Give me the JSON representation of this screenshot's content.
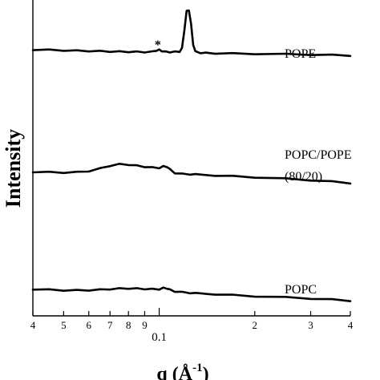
{
  "chart_data": {
    "type": "line",
    "title": "",
    "xlabel": "q (Å-1)",
    "xlabel_parts": {
      "main": "q (",
      "unit": "Å",
      "exp": "-1",
      "close": ")"
    },
    "ylabel": "Intensity",
    "x_scale": "log",
    "xlim": [
      0.04,
      0.4
    ],
    "x_ticks": [
      {
        "value": 0.04,
        "label": "4"
      },
      {
        "value": 0.05,
        "label": "5"
      },
      {
        "value": 0.06,
        "label": "6"
      },
      {
        "value": 0.07,
        "label": "7"
      },
      {
        "value": 0.08,
        "label": "8"
      },
      {
        "value": 0.09,
        "label": "9"
      },
      {
        "value": 0.1,
        "label": "0.1"
      },
      {
        "value": 0.2,
        "label": "2"
      },
      {
        "value": 0.3,
        "label": "3"
      },
      {
        "value": 0.4,
        "label": "4"
      }
    ],
    "y_ticks_shown": false,
    "grid": false,
    "legend": "none (series labeled inline, right side)",
    "annotations": [
      {
        "text": "*",
        "x": 0.099,
        "series": "POPE"
      }
    ],
    "series": [
      {
        "name": "POPE",
        "label_lines": [
          "POPE"
        ],
        "x": [
          0.04,
          0.045,
          0.05,
          0.055,
          0.06,
          0.065,
          0.07,
          0.075,
          0.08,
          0.085,
          0.09,
          0.095,
          0.098,
          0.1,
          0.102,
          0.105,
          0.108,
          0.112,
          0.116,
          0.118,
          0.12,
          0.122,
          0.124,
          0.126,
          0.128,
          0.13,
          0.135,
          0.14,
          0.15,
          0.17,
          0.2,
          0.25,
          0.3,
          0.35,
          0.4
        ],
        "y": [
          0.5,
          0.48,
          0.45,
          0.42,
          0.4,
          0.38,
          0.36,
          0.35,
          0.34,
          0.33,
          0.32,
          0.34,
          0.45,
          0.48,
          0.4,
          0.33,
          0.32,
          0.33,
          0.36,
          0.6,
          2.0,
          3.5,
          3.6,
          2.5,
          0.9,
          0.35,
          0.26,
          0.24,
          0.22,
          0.2,
          0.18,
          0.15,
          0.12,
          0.08,
          0.05
        ]
      },
      {
        "name": "POPC/POPE (80/20)",
        "label_lines": [
          "POPC/POPE",
          "(80/20)"
        ],
        "x": [
          0.04,
          0.045,
          0.05,
          0.055,
          0.06,
          0.065,
          0.07,
          0.075,
          0.08,
          0.085,
          0.09,
          0.095,
          0.1,
          0.103,
          0.106,
          0.108,
          0.112,
          0.118,
          0.125,
          0.13,
          0.15,
          0.17,
          0.2,
          0.25,
          0.3,
          0.35,
          0.4
        ],
        "y": [
          0.42,
          0.4,
          0.38,
          0.4,
          0.48,
          0.65,
          0.85,
          0.95,
          0.93,
          0.85,
          0.78,
          0.72,
          0.7,
          0.8,
          0.78,
          0.6,
          0.35,
          0.28,
          0.26,
          0.24,
          0.18,
          0.12,
          0.05,
          -0.05,
          -0.15,
          -0.25,
          -0.35
        ]
      },
      {
        "name": "POPC",
        "label_lines": [
          "POPC"
        ],
        "x": [
          0.04,
          0.045,
          0.05,
          0.055,
          0.06,
          0.065,
          0.07,
          0.075,
          0.08,
          0.085,
          0.09,
          0.095,
          0.1,
          0.103,
          0.106,
          0.108,
          0.112,
          0.118,
          0.125,
          0.13,
          0.15,
          0.17,
          0.2,
          0.25,
          0.3,
          0.35,
          0.4
        ],
        "y": [
          0.45,
          0.4,
          0.35,
          0.34,
          0.36,
          0.4,
          0.46,
          0.5,
          0.52,
          0.5,
          0.47,
          0.45,
          0.45,
          0.55,
          0.52,
          0.4,
          0.25,
          0.18,
          0.12,
          0.08,
          0.0,
          -0.08,
          -0.18,
          -0.28,
          -0.38,
          -0.48,
          -0.58
        ]
      }
    ]
  }
}
